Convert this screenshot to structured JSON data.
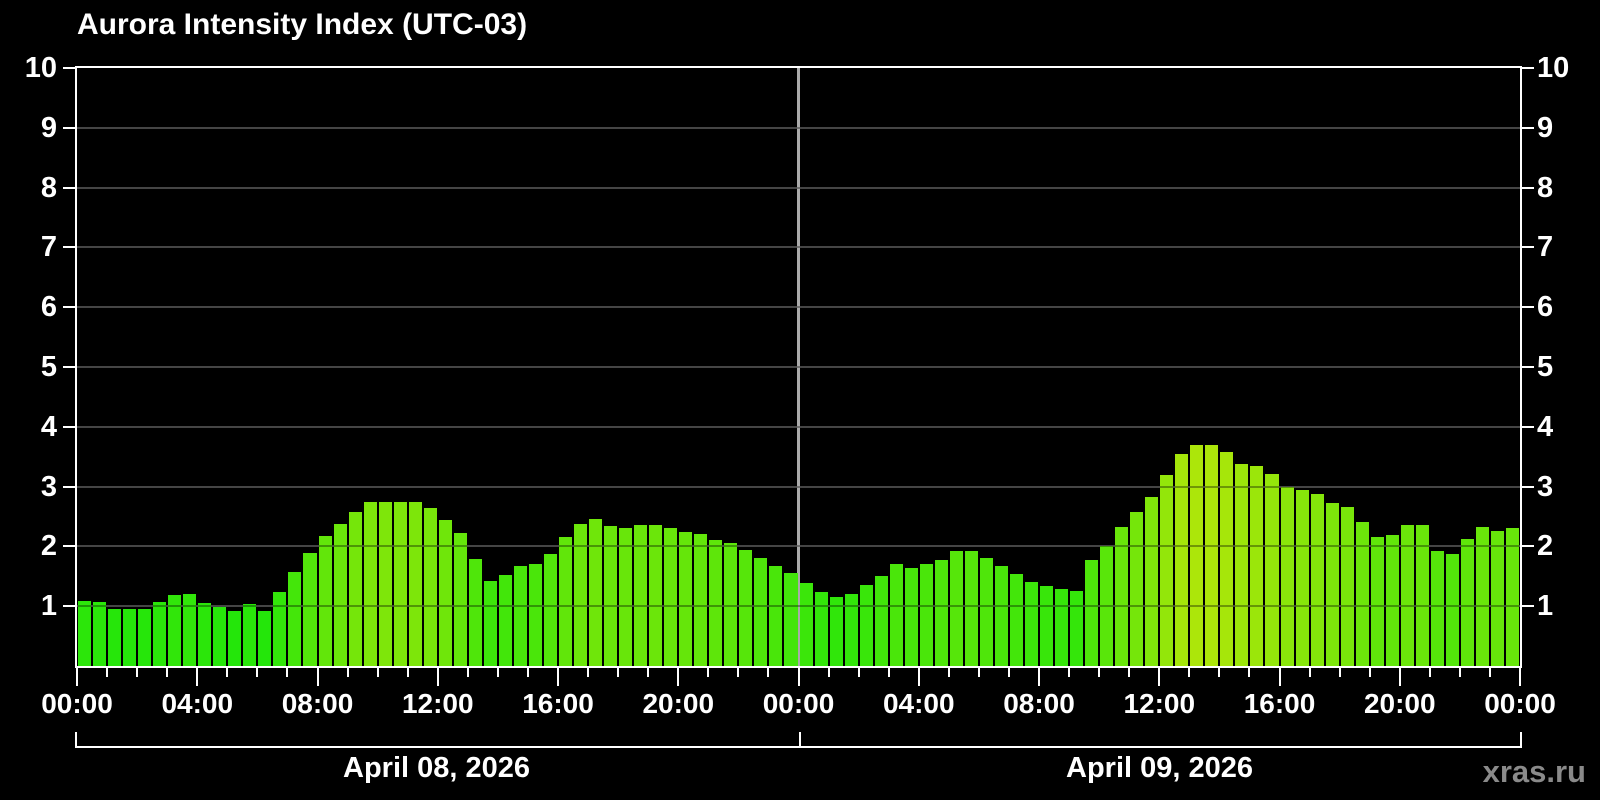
{
  "title": "Aurora Intensity Index (UTC-03)",
  "watermark": "xras.ru",
  "colors": {
    "background": "#000000",
    "axis": "#ffffff",
    "grid_under": "#6a6a6a",
    "grid_over_alpha": "rgba(0,0,0,0.35)",
    "day_separator": "#aaaaaa",
    "bar_low_green": "#2ee60b",
    "bar_mid_green": "#52e50a",
    "bar_high_yellow_green": "#aaee00",
    "watermark_gray": "#8a8a8a"
  },
  "chart_data": {
    "type": "bar",
    "title": "Aurora Intensity Index (UTC-03)",
    "xlabel": "",
    "ylabel": "",
    "ylim": [
      0,
      10
    ],
    "y_ticks": [
      1,
      2,
      3,
      4,
      5,
      6,
      7,
      8,
      9,
      10
    ],
    "grid": "horizontal",
    "interval_minutes": 30,
    "hours_per_day": 24,
    "x_hour_tick_step": 1,
    "x_label_step_hours": 4,
    "x_hour_labels": [
      "00:00",
      "04:00",
      "08:00",
      "12:00",
      "16:00",
      "20:00"
    ],
    "x_end_label": "00:00",
    "series": [
      {
        "name": "April 08, 2026",
        "values": [
          1.08,
          1.07,
          0.96,
          0.95,
          0.96,
          1.07,
          1.18,
          1.21,
          1.05,
          0.98,
          0.92,
          1.04,
          0.92,
          1.23,
          1.57,
          1.89,
          2.18,
          2.37,
          2.58,
          2.75,
          2.75,
          2.75,
          2.74,
          2.65,
          2.44,
          2.22,
          1.79,
          1.42,
          1.53,
          1.68,
          1.7,
          1.87,
          2.16,
          2.38,
          2.46,
          2.34,
          2.31,
          2.35,
          2.36,
          2.3,
          2.24,
          2.2,
          2.1,
          2.05,
          1.94,
          1.8,
          1.68,
          1.56
        ]
      },
      {
        "name": "April 09, 2026",
        "values": [
          1.39,
          1.23,
          1.16,
          1.2,
          1.35,
          1.5,
          1.7,
          1.64,
          1.7,
          1.78,
          1.93,
          1.93,
          1.8,
          1.67,
          1.54,
          1.4,
          1.33,
          1.29,
          1.25,
          1.78,
          2.0,
          2.32,
          2.58,
          2.82,
          3.19,
          3.55,
          3.7,
          3.7,
          3.58,
          3.37,
          3.35,
          3.21,
          3.0,
          2.95,
          2.87,
          2.73,
          2.66,
          2.41,
          2.15,
          2.19,
          2.36,
          2.35,
          1.93,
          1.87,
          2.13,
          2.32,
          2.26,
          2.3
        ]
      }
    ]
  }
}
